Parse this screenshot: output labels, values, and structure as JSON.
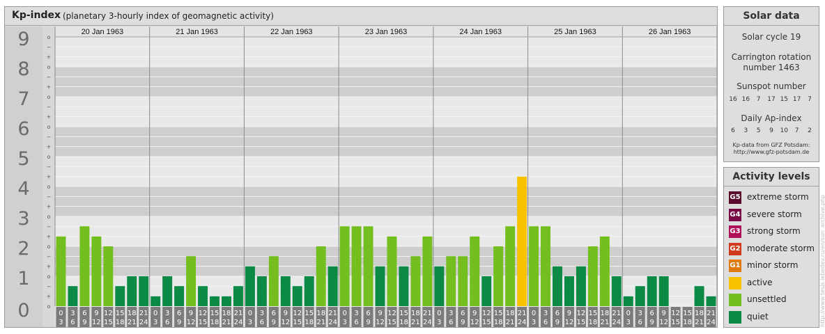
{
  "header": {
    "title": "Kp-index",
    "subtitle": "(planetary 3-hourly index of geomagnetic activity)"
  },
  "chart_data": {
    "type": "bar",
    "ylim": [
      0,
      9
    ],
    "y_ticks": [
      "0",
      "1",
      "2",
      "3",
      "4",
      "5",
      "6",
      "7",
      "8",
      "9"
    ],
    "minor_tick_labels": [
      "o",
      "+",
      "−"
    ],
    "days": [
      "20 Jan 1963",
      "21 Jan 1963",
      "22 Jan 1963",
      "23 Jan 1963",
      "24 Jan 1963",
      "25 Jan 1963",
      "26 Jan 1963"
    ],
    "interval_labels": [
      [
        "0",
        "3"
      ],
      [
        "3",
        "6"
      ],
      [
        "6",
        "9"
      ],
      [
        "9",
        "12"
      ],
      [
        "12",
        "15"
      ],
      [
        "15",
        "18"
      ],
      [
        "18",
        "21"
      ],
      [
        "21",
        "24"
      ]
    ],
    "values": [
      [
        2.33,
        0.67,
        2.67,
        2.33,
        2.0,
        0.67,
        1.0,
        1.0
      ],
      [
        0.33,
        1.0,
        0.67,
        1.67,
        0.67,
        0.33,
        0.33,
        0.67
      ],
      [
        1.33,
        1.0,
        1.67,
        1.0,
        0.67,
        1.0,
        2.0,
        1.33
      ],
      [
        2.67,
        2.67,
        2.67,
        1.33,
        2.33,
        1.33,
        1.67,
        2.33
      ],
      [
        1.33,
        1.67,
        1.67,
        2.33,
        1.0,
        2.0,
        2.67,
        4.33
      ],
      [
        2.67,
        2.67,
        1.33,
        1.0,
        1.33,
        2.0,
        2.33,
        1.0
      ],
      [
        0.33,
        0.67,
        1.0,
        1.0,
        0.0,
        0.0,
        0.67,
        0.33
      ]
    ],
    "colors": {
      "quiet": "#0a8a45",
      "unsettled": "#74bf1f",
      "active": "#f7c200"
    }
  },
  "solar": {
    "title": "Solar data",
    "cycle": "Solar cycle 19",
    "carrington_line1": "Carrington rotation",
    "carrington_line2": "number 1463",
    "sunspot_label": "Sunspot number",
    "sunspot_values": [
      "16",
      "16",
      "7",
      "17",
      "15",
      "17",
      "7"
    ],
    "ap_label": "Daily Ap-index",
    "ap_values": [
      "6",
      "3",
      "5",
      "9",
      "10",
      "7",
      "2"
    ],
    "source_line1": "Kp-data from GFZ Potsdam:",
    "source_line2": "http://www.gfz-potsdam.de"
  },
  "activity": {
    "title": "Activity levels",
    "levels": [
      {
        "badge": "G5",
        "label": "extreme storm",
        "color": "#5a0a2a"
      },
      {
        "badge": "G4",
        "label": "severe storm",
        "color": "#7a0a45"
      },
      {
        "badge": "G3",
        "label": "strong storm",
        "color": "#b0105a"
      },
      {
        "badge": "G2",
        "label": "moderate storm",
        "color": "#d23a1e"
      },
      {
        "badge": "G1",
        "label": "minor storm",
        "color": "#e07a10"
      },
      {
        "badge": "",
        "label": "active",
        "color": "#f7c200"
      },
      {
        "badge": "",
        "label": "unsettled",
        "color": "#74bf1f"
      },
      {
        "badge": "",
        "label": "quiet",
        "color": "#0a8a45"
      }
    ]
  },
  "watermark": "http://www.tesis.lebedev.ru/en/sun_archive.php"
}
